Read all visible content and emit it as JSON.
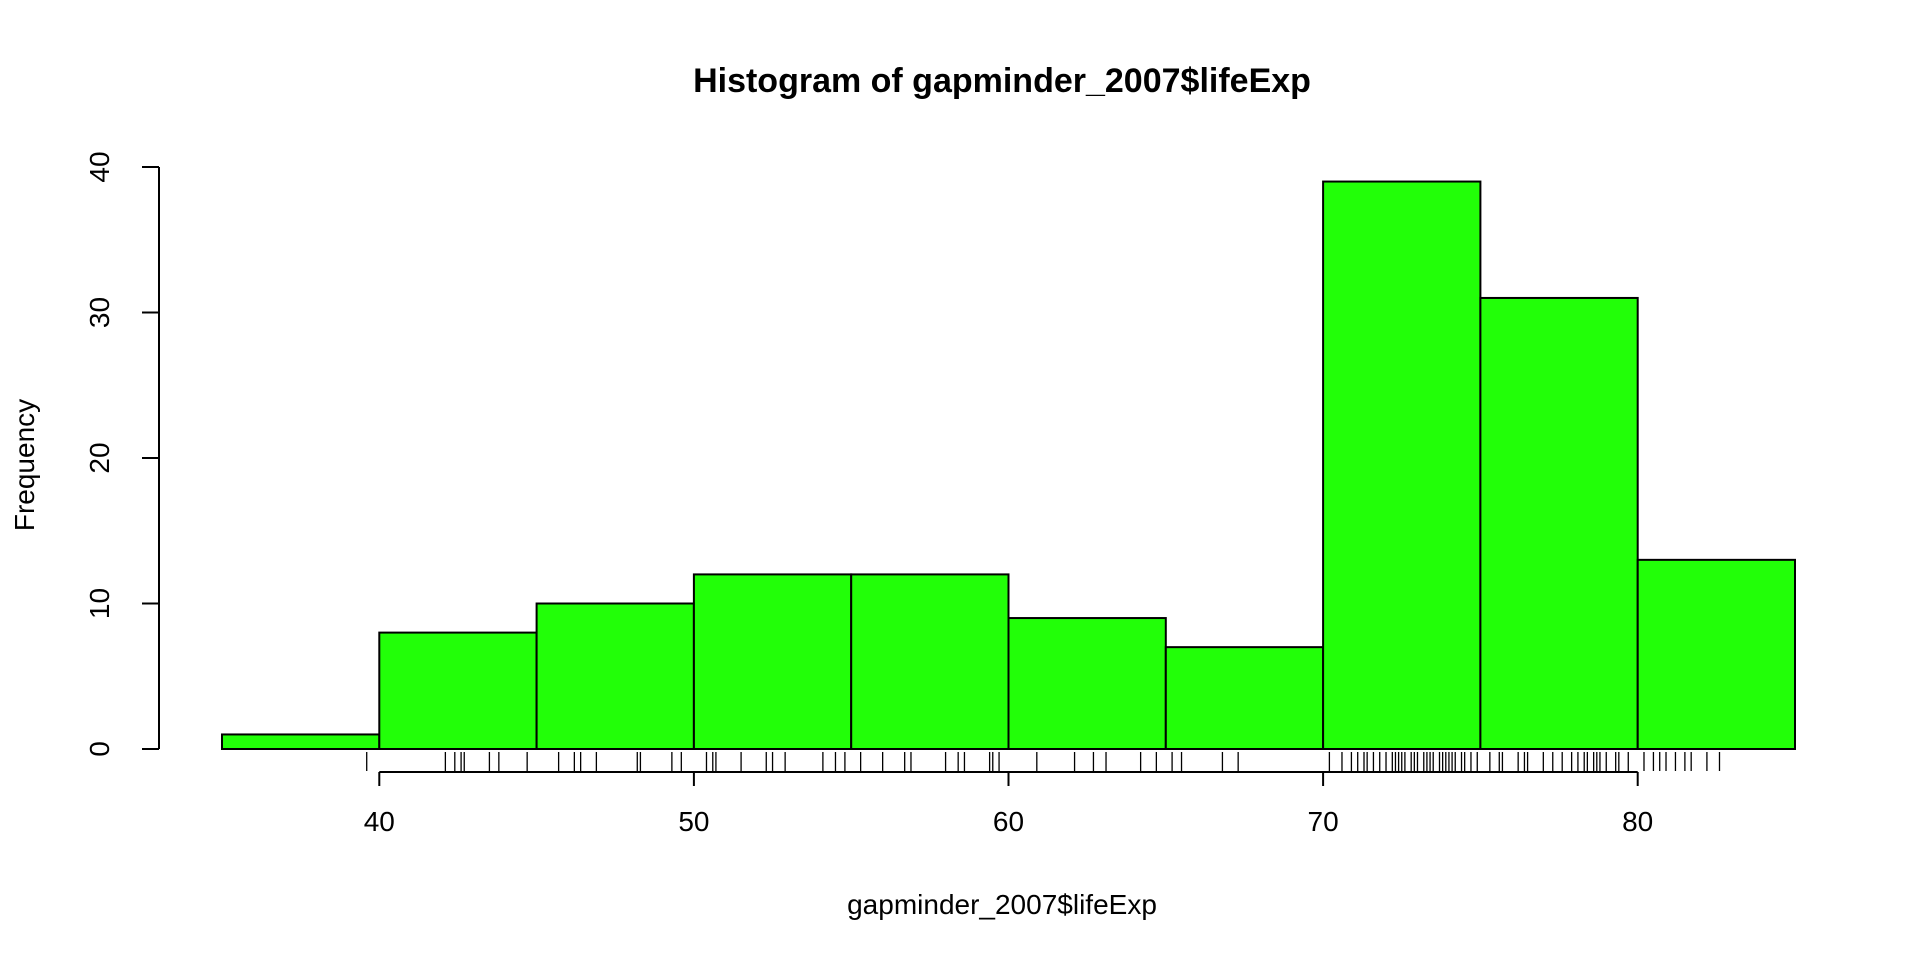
{
  "chart_data": {
    "type": "bar",
    "title": "Histogram of gapminder_2007$lifeExp",
    "xlabel": "gapminder_2007$lifeExp",
    "ylabel": "Frequency",
    "bar_color": "#22ff08",
    "xlim": [
      35,
      85
    ],
    "ylim": [
      0,
      40
    ],
    "bins": [
      {
        "start": 35,
        "end": 40,
        "count": 1
      },
      {
        "start": 40,
        "end": 45,
        "count": 8
      },
      {
        "start": 45,
        "end": 50,
        "count": 10
      },
      {
        "start": 50,
        "end": 55,
        "count": 12
      },
      {
        "start": 55,
        "end": 60,
        "count": 12
      },
      {
        "start": 60,
        "end": 65,
        "count": 9
      },
      {
        "start": 65,
        "end": 70,
        "count": 7
      },
      {
        "start": 70,
        "end": 75,
        "count": 39
      },
      {
        "start": 75,
        "end": 80,
        "count": 31
      },
      {
        "start": 80,
        "end": 85,
        "count": 13
      }
    ],
    "x_ticks": [
      40,
      50,
      60,
      70,
      80
    ],
    "y_ticks": [
      0,
      10,
      20,
      30,
      40
    ],
    "rug": [
      39.6,
      42.1,
      42.4,
      42.6,
      42.7,
      43.5,
      43.8,
      44.7,
      45.7,
      46.2,
      46.4,
      46.9,
      48.2,
      48.3,
      49.3,
      49.6,
      50.4,
      50.6,
      50.7,
      51.5,
      52.3,
      52.5,
      52.9,
      54.1,
      54.5,
      54.8,
      55.3,
      56.0,
      56.7,
      56.9,
      58.0,
      58.4,
      58.6,
      59.4,
      59.5,
      59.7,
      60.9,
      62.1,
      62.7,
      63.1,
      64.2,
      64.7,
      65.2,
      65.5,
      66.8,
      67.3,
      70.2,
      70.6,
      70.9,
      71.1,
      71.3,
      71.4,
      71.6,
      71.8,
      72.0,
      72.2,
      72.3,
      72.4,
      72.5,
      72.6,
      72.8,
      72.9,
      73.0,
      73.2,
      73.3,
      73.4,
      73.5,
      73.7,
      73.8,
      73.9,
      74.0,
      74.1,
      74.2,
      74.4,
      74.5,
      74.7,
      74.9,
      75.3,
      75.6,
      75.7,
      76.2,
      76.4,
      76.5,
      77.0,
      77.3,
      77.6,
      77.9,
      78.1,
      78.3,
      78.4,
      78.6,
      78.7,
      78.8,
      79.0,
      79.3,
      79.4,
      79.7,
      80.2,
      80.5,
      80.7,
      80.9,
      81.2,
      81.5,
      81.7,
      82.2,
      82.6
    ]
  }
}
